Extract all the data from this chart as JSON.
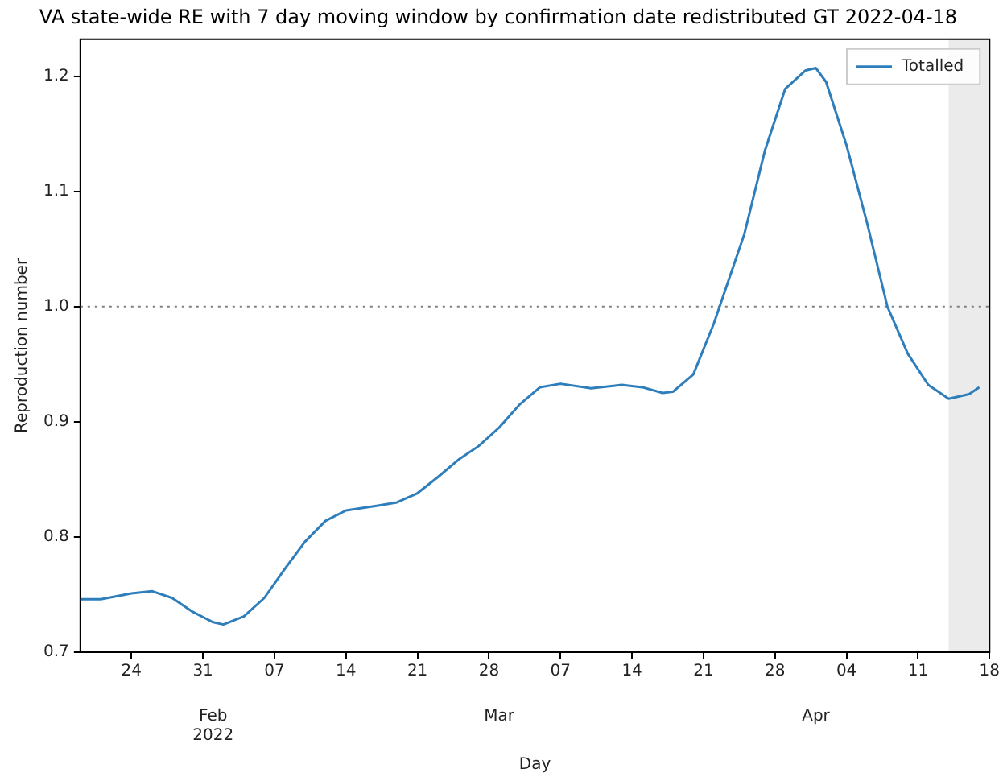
{
  "chart_data": {
    "type": "line",
    "title": "VA state-wide RE with 7 day moving window by confirmation date redistributed GT 2022-04-18",
    "xlabel": "Day",
    "ylabel": "Reproduction number",
    "x": [
      "2022-01-19",
      "2022-01-21",
      "2022-01-24",
      "2022-01-26",
      "2022-01-28",
      "2022-01-30",
      "2022-02-01",
      "2022-02-02",
      "2022-02-04",
      "2022-02-06",
      "2022-02-08",
      "2022-02-10",
      "2022-02-12",
      "2022-02-14",
      "2022-02-17",
      "2022-02-19",
      "2022-02-21",
      "2022-02-23",
      "2022-02-25",
      "2022-02-27",
      "2022-03-01",
      "2022-03-03",
      "2022-03-05",
      "2022-03-07",
      "2022-03-10",
      "2022-03-13",
      "2022-03-15",
      "2022-03-17",
      "2022-03-18",
      "2022-03-20",
      "2022-03-22",
      "2022-03-25",
      "2022-03-27",
      "2022-03-29",
      "2022-03-31",
      "2022-04-01",
      "2022-04-02",
      "2022-04-04",
      "2022-04-06",
      "2022-04-08",
      "2022-04-10",
      "2022-04-12",
      "2022-04-14",
      "2022-04-16",
      "2022-04-17"
    ],
    "series": [
      {
        "name": "Totalled",
        "color": "#2f7ebc",
        "values": [
          0.746,
          0.746,
          0.751,
          0.753,
          0.747,
          0.735,
          0.726,
          0.724,
          0.731,
          0.747,
          0.772,
          0.796,
          0.814,
          0.823,
          0.827,
          0.83,
          0.838,
          0.852,
          0.867,
          0.879,
          0.895,
          0.915,
          0.93,
          0.933,
          0.929,
          0.932,
          0.93,
          0.925,
          0.926,
          0.941,
          0.985,
          1.063,
          1.135,
          1.189,
          1.205,
          1.207,
          1.195,
          1.14,
          1.073,
          1.0,
          0.959,
          0.932,
          0.92,
          0.924,
          0.93
        ]
      }
    ],
    "xlim": [
      "2022-01-19",
      "2022-04-18"
    ],
    "xticks": [
      {
        "value": "2022-01-24",
        "label": "24"
      },
      {
        "value": "2022-01-31",
        "label": "31"
      },
      {
        "value": "2022-02-07",
        "label": "07"
      },
      {
        "value": "2022-02-14",
        "label": "14"
      },
      {
        "value": "2022-02-21",
        "label": "21"
      },
      {
        "value": "2022-02-28",
        "label": "28"
      },
      {
        "value": "2022-03-07",
        "label": "07"
      },
      {
        "value": "2022-03-14",
        "label": "14"
      },
      {
        "value": "2022-03-21",
        "label": "21"
      },
      {
        "value": "2022-03-28",
        "label": "28"
      },
      {
        "value": "2022-04-04",
        "label": "04"
      },
      {
        "value": "2022-04-11",
        "label": "11"
      },
      {
        "value": "2022-04-18",
        "label": "18"
      }
    ],
    "x2lim": [
      "2022-01-19",
      "2022-04-18"
    ],
    "x2ticks": [
      {
        "value": "2022-02-01",
        "label": "Feb\n2022"
      },
      {
        "value": "2022-03-01",
        "label": "Mar"
      },
      {
        "value": "2022-04-01",
        "label": "Apr"
      }
    ],
    "ylim": [
      0.7,
      1.232
    ],
    "yticks": [
      0.7,
      0.8,
      0.9,
      {
        "value": 1.0,
        "label": "1.0"
      },
      1.1,
      1.2
    ],
    "ref_lines": [
      {
        "axis": "y",
        "value": 1.0,
        "color": "#808080",
        "line_style": "dotted"
      }
    ],
    "bands": [
      {
        "axis": "x",
        "from": "2022-04-14",
        "to": "2022-04-18",
        "color": "#ebebeb"
      }
    ],
    "legend": "top right",
    "line_style": "solid"
  }
}
